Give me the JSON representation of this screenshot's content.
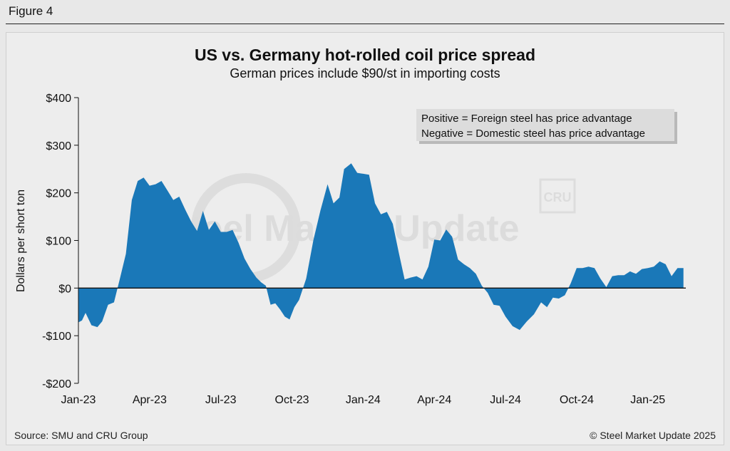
{
  "header": {
    "figure_label": "Figure 4"
  },
  "footer": {
    "source": "Source: SMU and CRU Group",
    "copyright": "© Steel Market Update 2025"
  },
  "watermark": {
    "brand": "Steel Market Update",
    "badge": "CRU"
  },
  "colors": {
    "area_fill": "#1a78b8",
    "zero_line": "#111111"
  },
  "chart_data": {
    "type": "area",
    "title": "US vs. Germany hot-rolled coil price spread",
    "subtitle": "German prices include $90/st in importing costs",
    "xlabel": "",
    "ylabel": "Dollars per short ton",
    "ylim": [
      -200,
      400
    ],
    "yticks": [
      -200,
      -100,
      0,
      100,
      200,
      300,
      400
    ],
    "ytick_labels": [
      "-$200",
      "-$100",
      "$0",
      "$100",
      "$200",
      "$300",
      "$400"
    ],
    "xlim": [
      0,
      25.6
    ],
    "xticks": [
      0,
      3,
      6,
      9,
      12,
      15,
      18,
      21,
      24
    ],
    "xtick_labels": [
      "Jan-23",
      "Apr-23",
      "Jul-23",
      "Oct-23",
      "Jan-24",
      "Apr-24",
      "Jul-24",
      "Oct-24",
      "Jan-25"
    ],
    "x_units": "months since Jan-2023 (weekly observations)",
    "legend": [
      "Positive = Foreign steel has price advantage",
      "Negative = Domestic steel has price advantage"
    ],
    "legend_position": "top-right",
    "grid": false,
    "series": [
      {
        "name": "US vs. Germany HRC price spread",
        "x": [
          0.0,
          0.15,
          0.3,
          0.55,
          0.8,
          1.0,
          1.25,
          1.5,
          1.75,
          2.0,
          2.25,
          2.5,
          2.75,
          3.0,
          3.25,
          3.5,
          3.75,
          4.0,
          4.25,
          4.5,
          4.75,
          5.0,
          5.25,
          5.5,
          5.75,
          6.0,
          6.25,
          6.5,
          6.75,
          7.0,
          7.25,
          7.5,
          7.7,
          7.9,
          8.1,
          8.3,
          8.5,
          8.7,
          8.9,
          9.1,
          9.3,
          9.6,
          9.9,
          10.2,
          10.5,
          10.75,
          11.0,
          11.2,
          11.5,
          11.75,
          12.0,
          12.25,
          12.5,
          12.75,
          13.0,
          13.25,
          13.5,
          13.75,
          14.0,
          14.25,
          14.5,
          14.75,
          15.0,
          15.25,
          15.5,
          15.75,
          16.0,
          16.25,
          16.5,
          16.75,
          17.0,
          17.25,
          17.5,
          17.75,
          18.0,
          18.3,
          18.6,
          18.9,
          19.2,
          19.5,
          19.75,
          20.0,
          20.25,
          20.5,
          20.75,
          21.0,
          21.25,
          21.5,
          21.75,
          22.0,
          22.25,
          22.5,
          22.75,
          23.0,
          23.25,
          23.5,
          23.75,
          24.0,
          24.25,
          24.5,
          24.75,
          25.0,
          25.25,
          25.5
        ],
        "values": [
          -72,
          -68,
          -52,
          -78,
          -82,
          -70,
          -35,
          -30,
          20,
          72,
          185,
          225,
          232,
          215,
          218,
          225,
          205,
          185,
          192,
          165,
          140,
          120,
          162,
          122,
          140,
          118,
          118,
          122,
          95,
          62,
          40,
          22,
          12,
          5,
          -35,
          -32,
          -45,
          -60,
          -66,
          -40,
          -25,
          20,
          100,
          163,
          218,
          178,
          190,
          250,
          262,
          242,
          240,
          238,
          178,
          155,
          160,
          135,
          75,
          18,
          22,
          25,
          18,
          45,
          102,
          100,
          123,
          108,
          60,
          50,
          42,
          30,
          5,
          -10,
          -35,
          -37,
          -60,
          -80,
          -88,
          -70,
          -55,
          -30,
          -40,
          -20,
          -22,
          -15,
          10,
          42,
          42,
          45,
          42,
          20,
          2,
          25,
          27,
          27,
          35,
          30,
          40,
          42,
          45,
          56,
          50,
          25,
          42,
          42
        ]
      }
    ]
  }
}
